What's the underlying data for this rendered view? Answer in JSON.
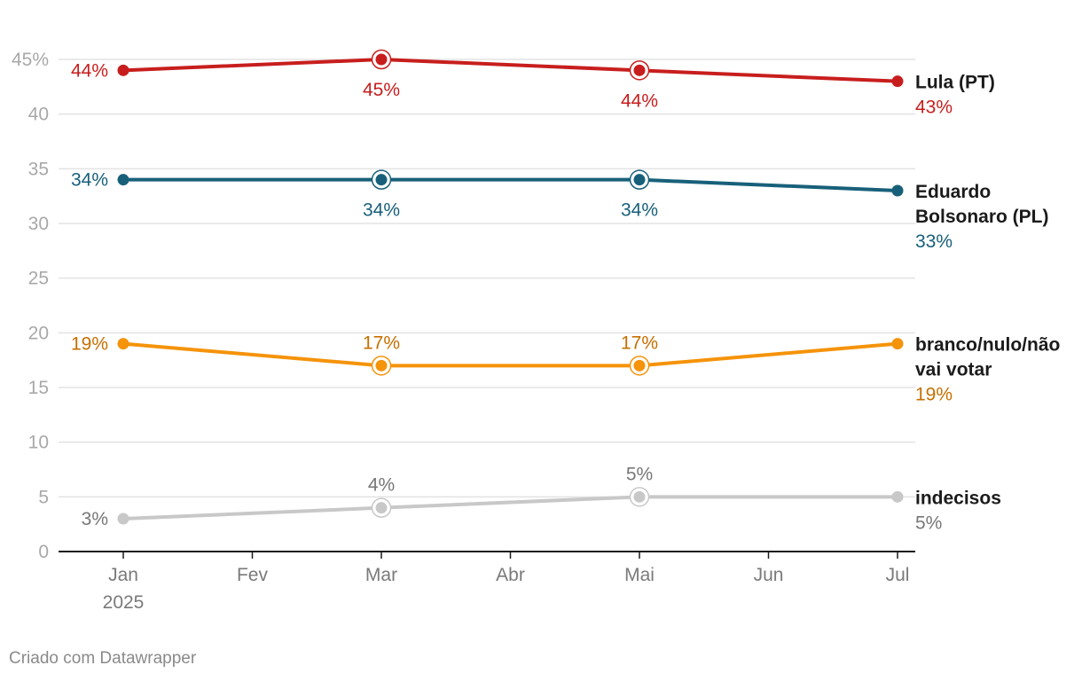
{
  "chart_data": {
    "type": "line",
    "title": "",
    "xlabel": "",
    "ylabel": "",
    "ylim": [
      0,
      45
    ],
    "yticks": [
      0,
      5,
      10,
      15,
      20,
      25,
      30,
      35,
      40,
      45
    ],
    "ytick_labels": [
      "0",
      "5",
      "10",
      "15",
      "20",
      "25",
      "30",
      "35",
      "40",
      "45%"
    ],
    "x_months": [
      "Jan",
      "Fev",
      "Mar",
      "Abr",
      "Mai",
      "Jun",
      "Jul"
    ],
    "x_year_label": "2025",
    "grid": true,
    "series": [
      {
        "name": "Lula (PT)",
        "name_lines": [
          "Lula (PT)"
        ],
        "color": "#c71e1d",
        "label_color": "#c71e1d",
        "months": [
          0,
          2,
          4,
          6
        ],
        "values": [
          44,
          45,
          44,
          43
        ],
        "labels": [
          "44%",
          "45%",
          "44%",
          "43%"
        ],
        "label_pos": [
          "left",
          "below",
          "below",
          "end"
        ]
      },
      {
        "name": "Eduardo Bolsonaro (PL)",
        "name_lines": [
          "Eduardo",
          "Bolsonaro (PL)"
        ],
        "color": "#18607a",
        "label_color": "#18607a",
        "months": [
          0,
          2,
          4,
          6
        ],
        "values": [
          34,
          34,
          34,
          33
        ],
        "labels": [
          "34%",
          "34%",
          "34%",
          "33%"
        ],
        "label_pos": [
          "left",
          "below",
          "below",
          "end"
        ]
      },
      {
        "name": "branco/nulo/não vai votar",
        "name_lines": [
          "branco/nulo/não",
          "vai votar"
        ],
        "color": "#f5930a",
        "label_color": "#c76f00",
        "months": [
          0,
          2,
          4,
          6
        ],
        "values": [
          19,
          17,
          17,
          19
        ],
        "labels": [
          "19%",
          "17%",
          "17%",
          "19%"
        ],
        "label_pos": [
          "left",
          "above",
          "above",
          "end"
        ]
      },
      {
        "name": "indecisos",
        "name_lines": [
          "indecisos"
        ],
        "color": "#c8c8c8",
        "label_color": "#777777",
        "months": [
          0,
          2,
          4,
          6
        ],
        "values": [
          3,
          4,
          5,
          5
        ],
        "labels": [
          "3%",
          "4%",
          "5%",
          "5%"
        ],
        "label_pos": [
          "left",
          "above",
          "above",
          "end"
        ]
      }
    ]
  },
  "footer": {
    "credit": "Criado com Datawrapper"
  }
}
